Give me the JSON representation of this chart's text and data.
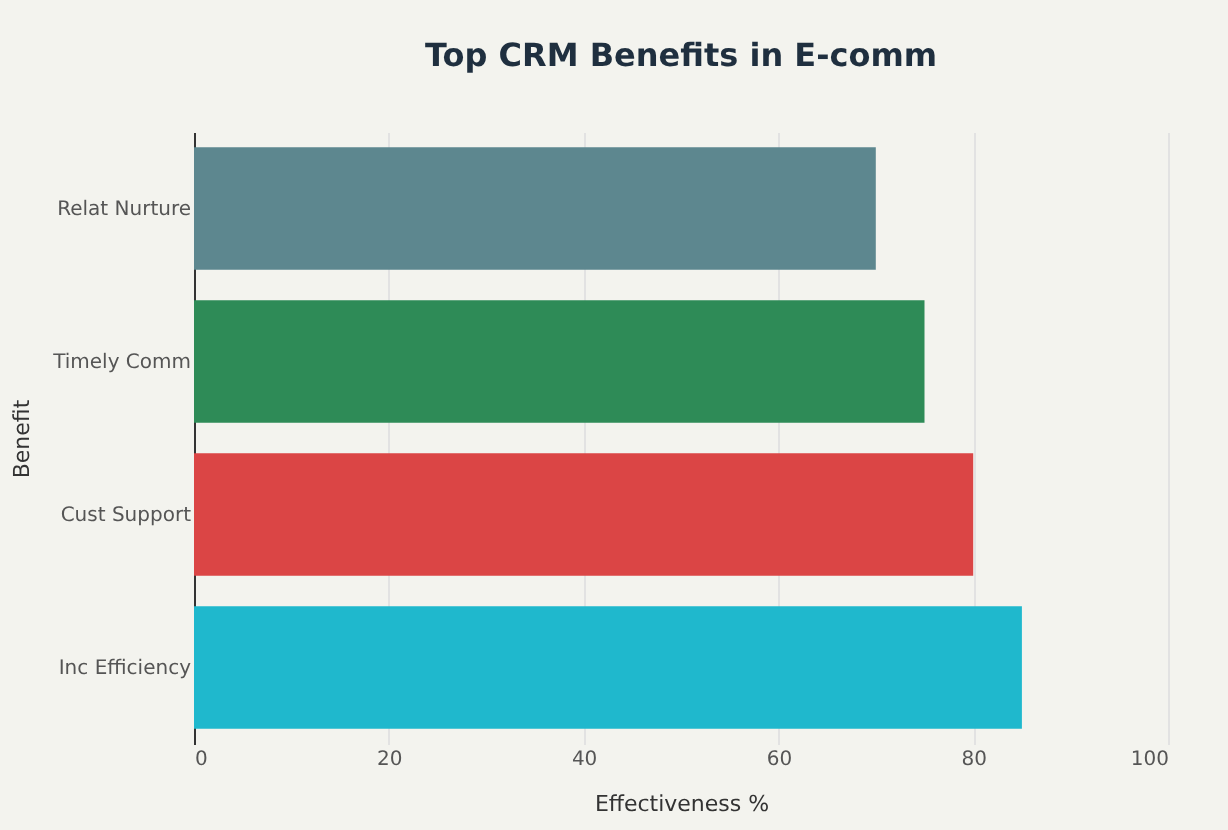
{
  "chart_data": {
    "type": "bar",
    "orientation": "horizontal",
    "title": "Top CRM Benefits in E-comm",
    "categories": [
      "Relat Nurture",
      "Timely Comm",
      "Cust Support",
      "Inc Efficiency"
    ],
    "values": [
      70,
      75,
      80,
      85
    ],
    "colors": [
      "#5d878f",
      "#2e8b57",
      "#db4545",
      "#1fb8cd"
    ],
    "xlabel": "Effectiveness %",
    "ylabel": "Benefit",
    "xlim": [
      0,
      100
    ],
    "xticks": [
      0,
      20,
      40,
      60,
      80,
      100
    ],
    "grid": "x"
  }
}
